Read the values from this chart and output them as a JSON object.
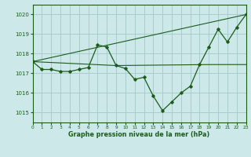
{
  "background_color": "#cce8e8",
  "grid_color": "#aacccc",
  "line_color": "#1a5c1a",
  "xlabel": "Graphe pression niveau de la mer (hPa)",
  "ylim": [
    1014.5,
    1020.5
  ],
  "xlim": [
    0,
    23
  ],
  "yticks": [
    1015,
    1016,
    1017,
    1018,
    1019,
    1020
  ],
  "xticks": [
    0,
    1,
    2,
    3,
    4,
    5,
    6,
    7,
    8,
    9,
    10,
    11,
    12,
    13,
    14,
    15,
    16,
    17,
    18,
    19,
    20,
    21,
    22,
    23
  ],
  "series1_x": [
    0,
    1,
    2,
    3,
    4,
    5,
    6,
    7,
    8,
    9,
    10,
    11,
    12,
    13,
    14,
    15,
    16,
    17,
    18,
    19,
    20,
    21,
    22,
    23
  ],
  "series1_y": [
    1017.6,
    1017.2,
    1017.2,
    1017.1,
    1017.1,
    1017.2,
    1017.3,
    1018.45,
    1018.35,
    1017.4,
    1017.25,
    1016.7,
    1016.8,
    1015.85,
    1015.1,
    1015.55,
    1016.0,
    1016.35,
    1017.45,
    1018.35,
    1019.25,
    1018.6,
    1019.35,
    1020.0
  ],
  "series2_x": [
    0,
    23
  ],
  "series2_y": [
    1017.6,
    1020.0
  ],
  "series3_x": [
    0,
    9,
    19,
    23
  ],
  "series3_y": [
    1017.6,
    1017.4,
    1017.45,
    1017.45
  ]
}
